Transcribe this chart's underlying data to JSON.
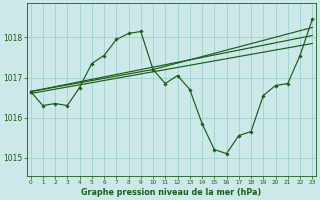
{
  "bg_color": "#cce8e8",
  "grid_color": "#99cccc",
  "line_color": "#1a5c1a",
  "marker_color": "#1a5c1a",
  "title": "Graphe pression niveau de la mer (hPa)",
  "ylabel_ticks": [
    1015,
    1016,
    1017,
    1018
  ],
  "xlim": [
    -0.3,
    23.3
  ],
  "ylim": [
    1014.55,
    1018.85
  ],
  "series": [
    {
      "x": [
        0,
        1,
        2,
        3,
        4,
        5,
        6,
        7,
        8,
        9,
        10,
        11,
        12,
        13,
        14,
        15,
        16,
        17,
        18,
        19,
        20,
        21,
        22,
        23
      ],
      "y": [
        1016.65,
        1016.3,
        1016.35,
        1016.3,
        1016.75,
        1017.35,
        1017.55,
        1017.95,
        1018.1,
        1018.15,
        1017.2,
        1016.85,
        1017.05,
        1016.7,
        1015.85,
        1015.2,
        1015.1,
        1015.55,
        1015.65,
        1016.55,
        1016.8,
        1016.85,
        1017.55,
        1018.45
      ],
      "marker": true
    },
    {
      "x": [
        0,
        23
      ],
      "y": [
        1016.6,
        1017.85
      ],
      "marker": false
    },
    {
      "x": [
        0,
        23
      ],
      "y": [
        1016.65,
        1018.05
      ],
      "marker": false
    },
    {
      "x": [
        0,
        10,
        23
      ],
      "y": [
        1016.65,
        1017.2,
        1018.25
      ],
      "marker": false
    }
  ]
}
